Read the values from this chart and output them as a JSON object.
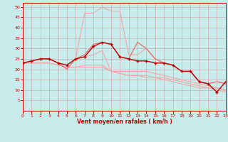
{
  "title": "",
  "xlabel": "Vent moyen/en rafales ( km/h )",
  "background_color": "#c8ecec",
  "x_values": [
    0,
    1,
    2,
    3,
    4,
    5,
    6,
    7,
    8,
    9,
    10,
    11,
    12,
    13,
    14,
    15,
    16,
    17,
    18,
    19,
    20,
    21,
    22,
    23
  ],
  "line_dark_red": [
    23,
    24,
    25,
    25,
    23,
    22,
    25,
    26,
    31,
    33,
    32,
    26,
    25,
    24,
    24,
    23,
    23,
    22,
    19,
    19,
    14,
    13,
    9,
    14
  ],
  "line_med1": [
    23,
    24,
    25,
    25,
    23,
    20,
    25,
    27,
    32,
    33,
    32,
    26,
    25,
    33,
    30,
    25,
    23,
    22,
    19,
    19,
    14,
    13,
    14,
    13
  ],
  "line_light1": [
    23,
    24,
    25,
    25,
    23,
    22,
    25,
    47,
    47,
    50,
    48,
    48,
    27,
    27,
    30,
    25,
    23,
    22,
    19,
    19,
    14,
    13,
    14,
    13
  ],
  "line_light2": [
    23,
    24,
    25,
    25,
    23,
    22,
    25,
    26,
    27,
    29,
    19,
    19,
    19,
    19,
    19,
    18,
    17,
    16,
    15,
    14,
    13,
    12,
    11,
    10
  ],
  "line_light3": [
    23,
    23,
    23,
    23,
    22,
    21,
    21,
    22,
    22,
    22,
    19,
    18,
    17,
    17,
    17,
    16,
    16,
    15,
    14,
    13,
    12,
    11,
    11,
    10
  ],
  "line_light4": [
    23,
    23,
    23,
    23,
    22,
    21,
    21,
    21,
    21,
    21,
    19,
    18,
    17,
    17,
    16,
    16,
    15,
    14,
    13,
    12,
    11,
    11,
    10,
    9
  ],
  "color_dark": "#bb0000",
  "color_med": "#e87070",
  "color_light": "#f0a8a8",
  "xlim": [
    0,
    23
  ],
  "ylim": [
    0,
    52
  ],
  "yticks": [
    5,
    10,
    15,
    20,
    25,
    30,
    35,
    40,
    45,
    50
  ]
}
